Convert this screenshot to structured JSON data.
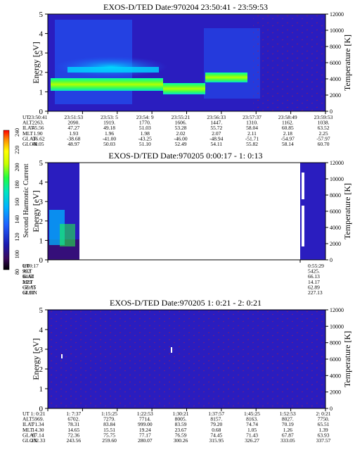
{
  "colorbar": {
    "label": "Second Harmonic Current",
    "ticks": [
      "240",
      "220",
      "200",
      "180",
      "160",
      "140",
      "120",
      "100",
      "80"
    ]
  },
  "chart_data": [
    {
      "type": "heatmap",
      "title": "EXOS-D/TED   Date:970204  23:50:41 - 23:59:53",
      "ylabel": "Energy [eV]",
      "y2label": "Temperature [K]",
      "ylim": [
        0,
        5
      ],
      "y2lim": [
        0,
        12000
      ],
      "yticks": [
        "0",
        "1",
        "2",
        "3",
        "4",
        "5"
      ],
      "y2ticks": [
        "0",
        "2000",
        "4000",
        "6000",
        "8000",
        "10000",
        "12000"
      ],
      "band": "bright green-yellow band between about 1.1 and 2.0 eV, absent near 23:55",
      "orbit_table": {
        "row_labels": [
          "UT",
          "ALT",
          "ILAT",
          "MLT",
          "GLAT",
          "GLON"
        ],
        "columns": [
          [
            "23:50:41",
            "2263.",
            "45.56",
            "1.90",
            "-36.62",
            "48.05"
          ],
          [
            "23:51:53",
            "2090.",
            "47.27",
            "1.93",
            "-38.68",
            "48.97"
          ],
          [
            "23:53: 5",
            "1919.",
            "49.18",
            "1.96",
            "-41.00",
            "50.03"
          ],
          [
            "23:54: 9",
            "1770.",
            "51.03",
            "1.98",
            "-43.25",
            "51.10"
          ],
          [
            "23:55:21",
            "1606.",
            "53.28",
            "2.02",
            "-46.00",
            "52.49"
          ],
          [
            "23:56:33",
            "1447.",
            "55.72",
            "2.07",
            "-48.94",
            "54.11"
          ],
          [
            "23:57:37",
            "1310.",
            "58.04",
            "2.11",
            "-51.71",
            "55.82"
          ],
          [
            "23:58:49",
            "1162.",
            "60.85",
            "2.18",
            "-54.97",
            "58.14"
          ],
          [
            "23:59:53",
            "1038.",
            "63.52",
            "2.25",
            "-57.97",
            "60.70"
          ]
        ]
      }
    },
    {
      "type": "heatmap",
      "title": "EXOS-D/TED   Date:970205   0:00:17 -  1: 0:13",
      "ylabel": "Energy [eV]",
      "y2label": "Temperature [K]",
      "ylim": [
        0,
        5
      ],
      "y2lim": [
        0,
        12000
      ],
      "yticks": [
        "0",
        "1",
        "2",
        "3",
        "4",
        "5"
      ],
      "y2ticks": [
        "0",
        "2000",
        "4000",
        "6000",
        "8000",
        "10000",
        "12000"
      ],
      "orbit_table": {
        "row_labels": [
          "UT",
          "ALT",
          "ILAT",
          "MLT",
          "GLAT",
          "GLON"
        ],
        "columns": [
          [
            "0:00:17",
            "992",
            "64.61",
            "2.29",
            "-59.15",
            "61.91"
          ],
          [
            "0:55:29",
            "5425.",
            "66.13",
            "14.17",
            "62.89",
            "227.13"
          ]
        ]
      }
    },
    {
      "type": "heatmap",
      "title": "EXOS-D/TED   Date:970205   1: 0:21 -  2: 0:21",
      "ylabel": "Energy [eV]",
      "y2label": "Temperature [K]",
      "ylim": [
        0,
        5
      ],
      "y2lim": [
        0,
        12000
      ],
      "yticks": [
        "0",
        "1",
        "2",
        "3",
        "4",
        "5"
      ],
      "y2ticks": [
        "0",
        "2000",
        "4000",
        "6000",
        "8000",
        "10000",
        "12000"
      ],
      "orbit_table": {
        "row_labels": [
          "UT",
          "ALT",
          "ILAT",
          "MLT",
          "GLAT",
          "GLON"
        ],
        "columns": [
          [
            "1: 0:21",
            "5969.",
            "71.34",
            "14.30",
            "67.14",
            "232.33"
          ],
          [
            "1: 7:37",
            "6702.",
            "78.31",
            "14.65",
            "72.36",
            "243.56"
          ],
          [
            "1:15:25",
            "7279.",
            "83.84",
            "15.51",
            "75.75",
            "259.60"
          ],
          [
            "1:22:53",
            "7714.",
            "999.00",
            "19.24",
            "77.17",
            "280.07"
          ],
          [
            "1:30:21",
            "8005.",
            "83.59",
            "23.67",
            "76.59",
            "300.26"
          ],
          [
            "1:37:57",
            "8157.",
            "79.20",
            "0.68",
            "74.45",
            "315.95"
          ],
          [
            "1:45:25",
            "8163.",
            "74.74",
            "1.05",
            "71.43",
            "326.27"
          ],
          [
            "1:52:53",
            "8027.",
            "70.19",
            "1.26",
            "67.87",
            "333.05"
          ],
          [
            "2: 0:21",
            "7750.",
            "65.51",
            "1.39",
            "63.93",
            "337.57"
          ]
        ]
      }
    }
  ]
}
